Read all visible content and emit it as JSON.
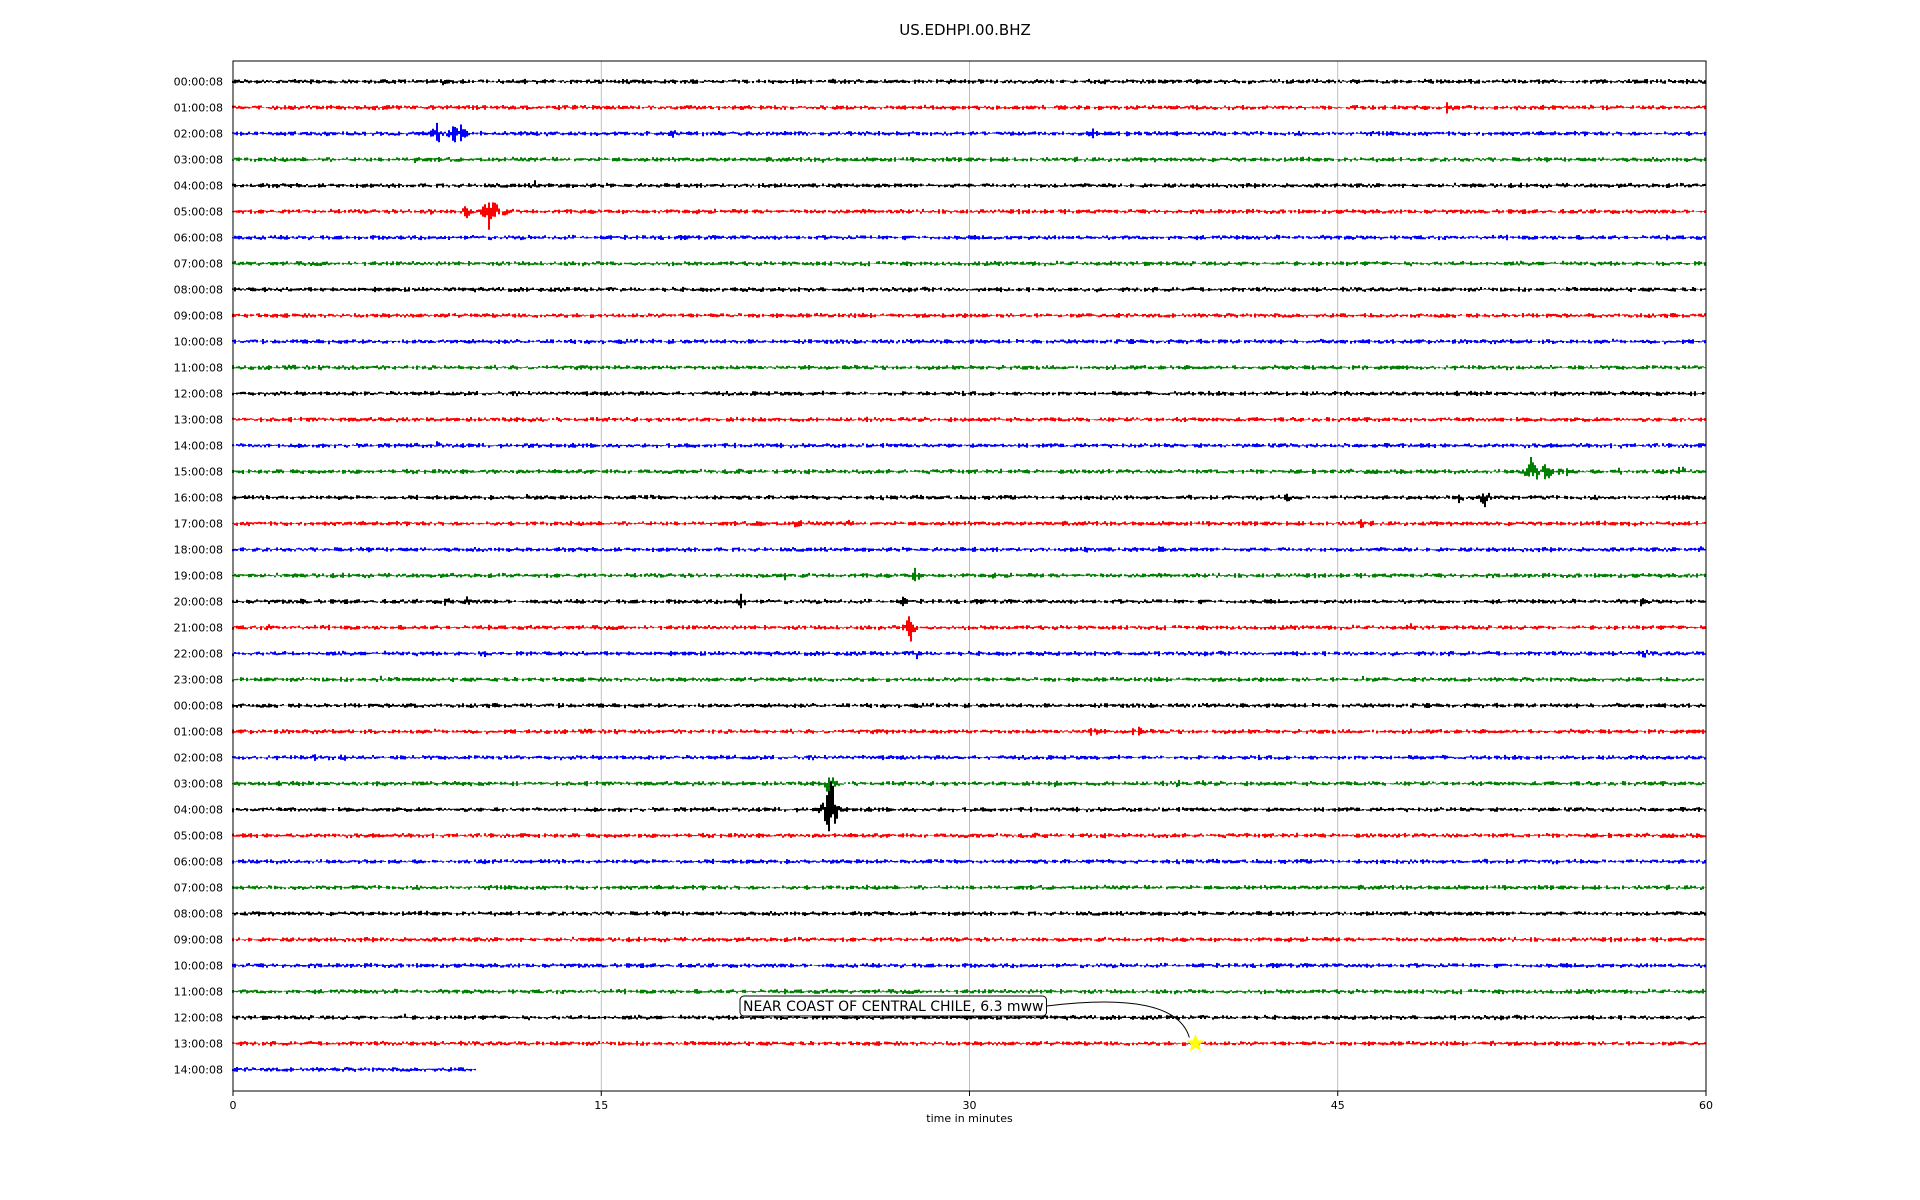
{
  "chart_data": {
    "type": "line",
    "title": "US.EDHPI.00.BHZ",
    "xlabel": "time in minutes",
    "ylabel": "",
    "xlim": [
      0,
      60
    ],
    "xticks": [
      "0",
      "15",
      "30",
      "45",
      "60"
    ],
    "xtick_values": [
      0,
      15,
      30,
      45,
      60
    ],
    "grid": "vertical",
    "row_colors": [
      "#000000",
      "#ff0000",
      "#0000ff",
      "#008000"
    ],
    "rows": [
      {
        "label": "00:00:08",
        "end": 60,
        "events": [
          {
            "t": 8.5,
            "a": 5
          }
        ]
      },
      {
        "label": "01:00:08",
        "end": 60,
        "events": [
          {
            "t": 49.5,
            "a": 8
          },
          {
            "t": 56,
            "a": 4
          }
        ]
      },
      {
        "label": "02:00:08",
        "end": 60,
        "events": [
          {
            "t": 8.3,
            "a": 14
          },
          {
            "t": 9,
            "a": 12
          },
          {
            "t": 9.3,
            "a": 10
          },
          {
            "t": 18,
            "a": 8
          },
          {
            "t": 35,
            "a": 6
          }
        ]
      },
      {
        "label": "03:00:08",
        "end": 60,
        "events": [
          {
            "t": 7.5,
            "a": 6
          },
          {
            "t": 24,
            "a": 4
          }
        ]
      },
      {
        "label": "04:00:08",
        "end": 60,
        "events": [
          {
            "t": 12.3,
            "a": 6
          },
          {
            "t": 21.5,
            "a": 5
          }
        ]
      },
      {
        "label": "05:00:08",
        "end": 60,
        "events": [
          {
            "t": 8,
            "a": 7
          },
          {
            "t": 9.5,
            "a": 9
          },
          {
            "t": 10.5,
            "a": 30
          },
          {
            "t": 11,
            "a": 7
          }
        ]
      },
      {
        "label": "06:00:08",
        "end": 60,
        "events": []
      },
      {
        "label": "07:00:08",
        "end": 60,
        "events": []
      },
      {
        "label": "08:00:08",
        "end": 60,
        "events": []
      },
      {
        "label": "09:00:08",
        "end": 60,
        "events": []
      },
      {
        "label": "10:00:08",
        "end": 60,
        "events": []
      },
      {
        "label": "11:00:08",
        "end": 60,
        "events": []
      },
      {
        "label": "12:00:08",
        "end": 60,
        "events": []
      },
      {
        "label": "13:00:08",
        "end": 60,
        "events": []
      },
      {
        "label": "14:00:08",
        "end": 60,
        "events": [
          {
            "t": 8.3,
            "a": 5
          },
          {
            "t": 56.5,
            "a": 4
          }
        ]
      },
      {
        "label": "15:00:08",
        "end": 60,
        "events": [
          {
            "t": 52.9,
            "a": 24
          },
          {
            "t": 53.5,
            "a": 12
          },
          {
            "t": 54.2,
            "a": 10
          },
          {
            "t": 56.5,
            "a": 8
          },
          {
            "t": 59,
            "a": 8
          }
        ]
      },
      {
        "label": "16:00:08",
        "end": 60,
        "events": [
          {
            "t": 12,
            "a": 4
          },
          {
            "t": 17,
            "a": 5
          },
          {
            "t": 43,
            "a": 6
          },
          {
            "t": 50,
            "a": 8
          },
          {
            "t": 51,
            "a": 12
          }
        ]
      },
      {
        "label": "17:00:08",
        "end": 60,
        "events": [
          {
            "t": 21.5,
            "a": 7
          },
          {
            "t": 23,
            "a": 7
          },
          {
            "t": 25,
            "a": 6
          },
          {
            "t": 46,
            "a": 6
          },
          {
            "t": 57,
            "a": 6
          }
        ]
      },
      {
        "label": "18:00:08",
        "end": 60,
        "events": [
          {
            "t": 34.8,
            "a": 5
          },
          {
            "t": 37.8,
            "a": 5
          },
          {
            "t": 59.9,
            "a": 6
          }
        ]
      },
      {
        "label": "19:00:08",
        "end": 60,
        "events": [
          {
            "t": 0.5,
            "a": 5
          },
          {
            "t": 21.3,
            "a": 5
          },
          {
            "t": 22.5,
            "a": 6
          },
          {
            "t": 27.8,
            "a": 9
          },
          {
            "t": 31,
            "a": 4
          }
        ]
      },
      {
        "label": "20:00:08",
        "end": 60,
        "events": [
          {
            "t": 2.8,
            "a": 5
          },
          {
            "t": 8.7,
            "a": 7
          },
          {
            "t": 9.5,
            "a": 6
          },
          {
            "t": 20.7,
            "a": 9
          },
          {
            "t": 27.3,
            "a": 6
          },
          {
            "t": 57.4,
            "a": 6
          }
        ]
      },
      {
        "label": "21:00:08",
        "end": 60,
        "events": [
          {
            "t": 1.5,
            "a": 5
          },
          {
            "t": 27.6,
            "a": 16
          },
          {
            "t": 48,
            "a": 5
          }
        ]
      },
      {
        "label": "22:00:08",
        "end": 60,
        "events": [
          {
            "t": 10.2,
            "a": 5
          },
          {
            "t": 27.8,
            "a": 8
          },
          {
            "t": 57.5,
            "a": 6
          }
        ]
      },
      {
        "label": "23:00:08",
        "end": 60,
        "events": [
          {
            "t": 6,
            "a": 5
          },
          {
            "t": 46,
            "a": 5
          }
        ]
      },
      {
        "label": "00:00:08",
        "end": 60,
        "events": [
          {
            "t": 7,
            "a": 5
          },
          {
            "t": 13.5,
            "a": 4
          }
        ]
      },
      {
        "label": "01:00:08",
        "end": 60,
        "events": [
          {
            "t": 35,
            "a": 9
          },
          {
            "t": 36.8,
            "a": 10
          }
        ]
      },
      {
        "label": "02:00:08",
        "end": 60,
        "events": [
          {
            "t": 3.3,
            "a": 5
          },
          {
            "t": 4.5,
            "a": 5
          }
        ]
      },
      {
        "label": "03:00:08",
        "end": 60,
        "events": [
          {
            "t": 24.3,
            "a": 14
          },
          {
            "t": 32,
            "a": 5
          },
          {
            "t": 33.5,
            "a": 4
          },
          {
            "t": 38.5,
            "a": 5
          },
          {
            "t": 39.5,
            "a": 4
          }
        ]
      },
      {
        "label": "04:00:08",
        "end": 60,
        "events": [
          {
            "t": 23.8,
            "a": 7
          },
          {
            "t": 24.35,
            "a": 38
          }
        ]
      },
      {
        "label": "05:00:08",
        "end": 60,
        "events": []
      },
      {
        "label": "06:00:08",
        "end": 60,
        "events": []
      },
      {
        "label": "07:00:08",
        "end": 60,
        "events": [
          {
            "t": 5,
            "a": 3
          }
        ]
      },
      {
        "label": "08:00:08",
        "end": 60,
        "events": []
      },
      {
        "label": "09:00:08",
        "end": 60,
        "events": []
      },
      {
        "label": "10:00:08",
        "end": 60,
        "events": []
      },
      {
        "label": "11:00:08",
        "end": 60,
        "events": []
      },
      {
        "label": "12:00:08",
        "end": 60,
        "events": [
          {
            "t": 7,
            "a": 4
          }
        ]
      },
      {
        "label": "13:00:08",
        "end": 60,
        "events": [
          {
            "t": 51.3,
            "a": 4
          }
        ]
      },
      {
        "label": "14:00:08",
        "end": 9.9,
        "events": []
      }
    ],
    "annotation": {
      "text": "NEAR COAST OF CENTRAL CHILE, 6.3 mww",
      "row": 37,
      "t": 39.2,
      "marker": "star",
      "marker_color": "#ffff00"
    }
  }
}
